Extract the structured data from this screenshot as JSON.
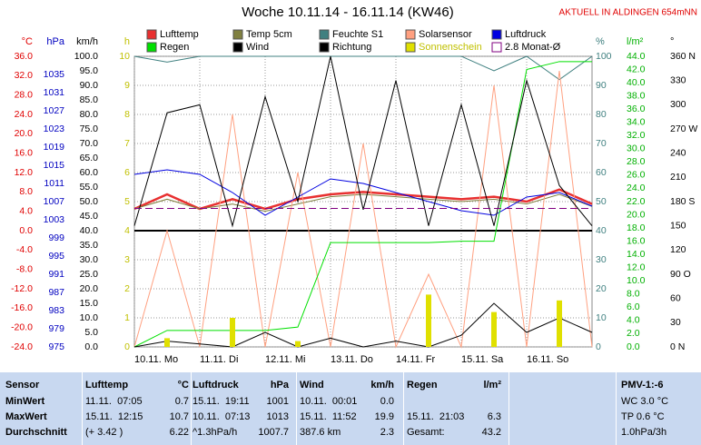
{
  "chart_data": {
    "type": "line",
    "title": "Woche 10.11.14 - 16.11.14 (KW46)",
    "subtitle": "AKTUELL IN ALDINGEN 654mNN",
    "xlim": [
      0,
      7
    ],
    "categories": [
      "10.11. Mo",
      "11.11. Di",
      "12.11. Mi",
      "13.11. Do",
      "14.11. Fr",
      "15.11. Sa",
      "16.11. So"
    ],
    "x": [
      0,
      0.5,
      1,
      1.5,
      2,
      2.5,
      3,
      3.5,
      4,
      4.5,
      5,
      5.5,
      6,
      6.5,
      7
    ],
    "grid": true,
    "axes": [
      {
        "unit": "°C",
        "color": "#e00000",
        "side": "left",
        "lim": [
          -24,
          36
        ],
        "ticks": [
          {
            "value": -24,
            "label": "-24.0"
          },
          {
            "value": -20,
            "label": "-20.0"
          },
          {
            "value": -16,
            "label": "-16.0"
          },
          {
            "value": -12,
            "label": "-12.0"
          },
          {
            "value": -8,
            "label": "-8.0"
          },
          {
            "value": -4,
            "label": "-4.0"
          },
          {
            "value": 0,
            "label": "0.0"
          },
          {
            "value": 4,
            "label": "4.0"
          },
          {
            "value": 8,
            "label": "8.0"
          },
          {
            "value": 12,
            "label": "12.0"
          },
          {
            "value": 16,
            "label": "16.0"
          },
          {
            "value": 20,
            "label": "20.0"
          },
          {
            "value": 24,
            "label": "24.0"
          },
          {
            "value": 28,
            "label": "28.0"
          },
          {
            "value": 32,
            "label": "32.0"
          },
          {
            "value": 36,
            "label": "36.0"
          }
        ]
      },
      {
        "unit": "hPa",
        "color": "#0000c0",
        "side": "left",
        "lim": [
          975,
          1039
        ],
        "ticks": [
          975,
          979,
          983,
          987,
          991,
          995,
          999,
          1003,
          1007,
          1011,
          1015,
          1019,
          1023,
          1027,
          1031,
          1035
        ]
      },
      {
        "unit": "km/h",
        "color": "#000000",
        "side": "left",
        "lim": [
          0,
          100
        ],
        "ticks": [
          {
            "value": 0,
            "label": "0.0"
          },
          {
            "value": 5,
            "label": "5.0"
          },
          {
            "value": 10,
            "label": "10.0"
          },
          {
            "value": 15,
            "label": "15.0"
          },
          {
            "value": 20,
            "label": "20.0"
          },
          {
            "value": 25,
            "label": "25.0"
          },
          {
            "value": 30,
            "label": "30.0"
          },
          {
            "value": 35,
            "label": "35.0"
          },
          {
            "value": 40,
            "label": "40.0"
          },
          {
            "value": 45,
            "label": "45.0"
          },
          {
            "value": 50,
            "label": "50.0"
          },
          {
            "value": 55,
            "label": "55.0"
          },
          {
            "value": 60,
            "label": "60.0"
          },
          {
            "value": 65,
            "label": "65.0"
          },
          {
            "value": 70,
            "label": "70.0"
          },
          {
            "value": 75,
            "label": "75.0"
          },
          {
            "value": 80,
            "label": "80.0"
          },
          {
            "value": 85,
            "label": "85.0"
          },
          {
            "value": 90,
            "label": "90.0"
          },
          {
            "value": 95,
            "label": "95.0"
          },
          {
            "value": 100,
            "label": "100.0"
          }
        ]
      },
      {
        "unit": "h",
        "color": "#c0c000",
        "side": "left",
        "lim": [
          0,
          10
        ],
        "ticks": [
          0,
          1,
          2,
          3,
          4,
          5,
          6,
          7,
          8,
          9,
          10
        ]
      },
      {
        "unit": "%",
        "color": "#408080",
        "side": "right",
        "lim": [
          0,
          100
        ],
        "ticks": [
          0,
          10,
          20,
          30,
          40,
          50,
          60,
          70,
          80,
          90,
          100
        ]
      },
      {
        "unit": "l/m²",
        "color": "#00b000",
        "side": "right",
        "lim": [
          0,
          44
        ],
        "ticks": [
          {
            "value": 0,
            "label": "0.0"
          },
          {
            "value": 2,
            "label": "2.0"
          },
          {
            "value": 4,
            "label": "4.0"
          },
          {
            "value": 6,
            "label": "6.0"
          },
          {
            "value": 8,
            "label": "8.0"
          },
          {
            "value": 10,
            "label": "10.0"
          },
          {
            "value": 12,
            "label": "12.0"
          },
          {
            "value": 14,
            "label": "14.0"
          },
          {
            "value": 16,
            "label": "16.0"
          },
          {
            "value": 18,
            "label": "18.0"
          },
          {
            "value": 20,
            "label": "20.0"
          },
          {
            "value": 22,
            "label": "22.0"
          },
          {
            "value": 24,
            "label": "24.0"
          },
          {
            "value": 26,
            "label": "26.0"
          },
          {
            "value": 28,
            "label": "28.0"
          },
          {
            "value": 30,
            "label": "30.0"
          },
          {
            "value": 32,
            "label": "32.0"
          },
          {
            "value": 34,
            "label": "34.0"
          },
          {
            "value": 36,
            "label": "36.0"
          },
          {
            "value": 38,
            "label": "38.0"
          },
          {
            "value": 40,
            "label": "40.0"
          },
          {
            "value": 42,
            "label": "42.0"
          },
          {
            "value": 44,
            "label": "44.0"
          }
        ]
      },
      {
        "unit": "°",
        "color": "#000000",
        "side": "right",
        "lim": [
          0,
          360
        ],
        "ticks": [
          {
            "value": 0,
            "label": "0 N"
          },
          {
            "value": 30,
            "label": "30"
          },
          {
            "value": 60,
            "label": "60"
          },
          {
            "value": 90,
            "label": "90 O"
          },
          {
            "value": 120,
            "label": "120"
          },
          {
            "value": 150,
            "label": "150"
          },
          {
            "value": 180,
            "label": "180 S"
          },
          {
            "value": 210,
            "label": "210"
          },
          {
            "value": 240,
            "label": "240"
          },
          {
            "value": 270,
            "label": "270 W"
          },
          {
            "value": 300,
            "label": "300"
          },
          {
            "value": 330,
            "label": "330"
          },
          {
            "value": 360,
            "label": "360 N"
          }
        ]
      }
    ],
    "series": [
      {
        "name": "Lufttemp",
        "color": "#e83030",
        "axis": 0,
        "width": 2.5,
        "values": [
          4.5,
          7.5,
          4.5,
          6.5,
          4.5,
          6.5,
          7.5,
          8,
          7.5,
          7,
          6.5,
          7,
          6,
          8.5,
          5.5
        ]
      },
      {
        "name": "Temp 5cm",
        "color": "#808040",
        "axis": 0,
        "width": 1,
        "values": [
          4.5,
          6.5,
          4.5,
          5.5,
          4,
          5.5,
          7,
          7.5,
          7,
          6.5,
          6,
          6.5,
          5.5,
          7.5,
          5
        ]
      },
      {
        "name": "Feuchte S1",
        "color": "#408080",
        "axis": 4,
        "width": 1,
        "values": [
          100,
          98,
          100,
          100,
          100,
          100,
          100,
          100,
          100,
          100,
          100,
          95,
          100,
          92,
          100
        ]
      },
      {
        "name": "Solarsensor",
        "color": "#ffa080",
        "axis": 4,
        "width": 1,
        "values": [
          0,
          40,
          0,
          80,
          0,
          60,
          0,
          70,
          0,
          25,
          0,
          90,
          0,
          95,
          0
        ]
      },
      {
        "name": "Luftdruck",
        "color": "#0000e0",
        "axis": 1,
        "width": 1,
        "values": [
          1013,
          1014,
          1013,
          1009,
          1004,
          1008,
          1012,
          1011,
          1009,
          1007,
          1005,
          1004,
          1008,
          1009,
          1006
        ]
      },
      {
        "name": "Regen",
        "color": "#00e000",
        "axis": 5,
        "width": 1,
        "values": [
          0,
          2.5,
          2.5,
          2.5,
          2.5,
          3,
          15.8,
          15.8,
          15.8,
          15.8,
          16,
          16,
          42,
          43.2,
          43.2
        ]
      },
      {
        "name": "Wind",
        "color": "#000000",
        "axis": 2,
        "width": 1,
        "values": [
          0,
          2,
          1,
          0,
          5,
          0,
          3,
          0,
          2,
          0,
          4,
          15,
          5,
          10,
          5
        ]
      },
      {
        "name": "Richtung",
        "color": "#000000",
        "axis": 6,
        "width": 1,
        "values": [
          150,
          290,
          300,
          150,
          310,
          180,
          360,
          170,
          330,
          150,
          300,
          150,
          330,
          200,
          150
        ]
      },
      {
        "name": "Sonnenschein",
        "color": "#e0e000",
        "axis": 3,
        "bars": true,
        "values": [
          0,
          0.3,
          0,
          1,
          0,
          0.2,
          0,
          0,
          0,
          1.8,
          0,
          1.2,
          0,
          1.6,
          0
        ]
      },
      {
        "name": "2.8 Monat-Ø",
        "color": "#800080",
        "axis": 0,
        "dashed": true,
        "value": 4.6
      }
    ]
  },
  "table": {
    "header": [
      "Sensor",
      "Lufttemp",
      "°C",
      "Luftdruck",
      "hPa",
      "Wind",
      "km/h",
      "Regen",
      "l/m²",
      "PMV-1:-6"
    ],
    "rows": [
      [
        "MinWert",
        "11.11.  07:05",
        "0.7",
        "15.11.  19:11",
        "1001",
        "10.11.  00:01",
        "0.0",
        null,
        null,
        "WC 3.0 °C"
      ],
      [
        "MaxWert",
        "15.11.  12:15",
        "10.7",
        "10.11.  07:13",
        "1013",
        "15.11.  11:52",
        "19.9",
        "15.11.  21:03",
        "6.3",
        "TP 0.6 °C"
      ],
      [
        "Durchschnitt",
        "(+ 3.42 )",
        "6.22",
        "^1.3hPa/h",
        "1007.7",
        "387.6 km",
        "2.3",
        "Gesamt:",
        "43.2",
        "1.0hPa/3h"
      ]
    ]
  }
}
